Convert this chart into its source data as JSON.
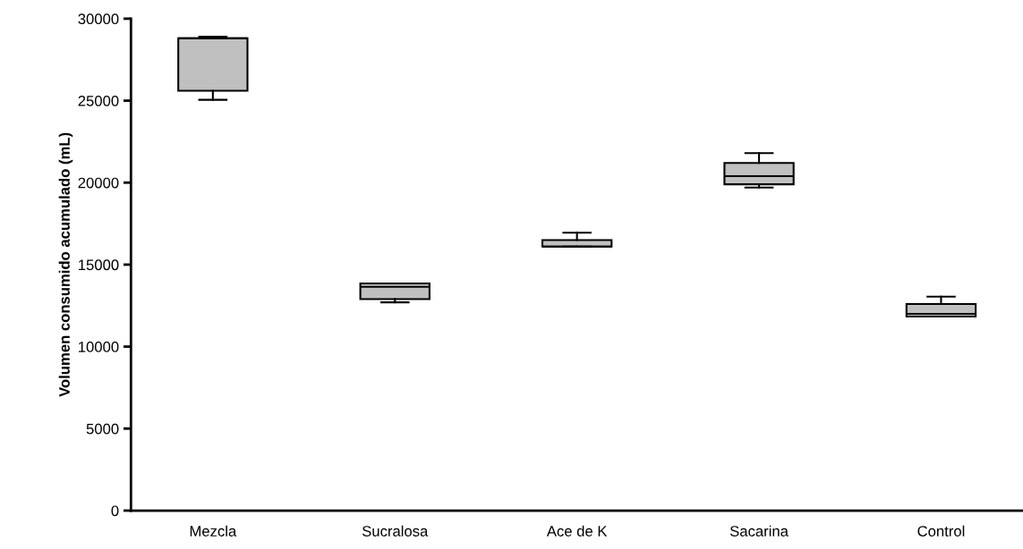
{
  "chart_data": {
    "type": "box",
    "ylabel": "Volumen consumido acumulado (mL)",
    "categories": [
      "Mezcla",
      "Sucralosa",
      "Ace de K",
      "Sacarina",
      "Control"
    ],
    "color": "#c0c0c0",
    "boxes": [
      {
        "low": 25050,
        "q1": 25600,
        "median": 28800,
        "q3": 28800,
        "high": 28900
      },
      {
        "low": 12700,
        "q1": 12900,
        "median": 13650,
        "q3": 13850,
        "high": 13850
      },
      {
        "low": 16100,
        "q1": 16100,
        "median": 16100,
        "q3": 16500,
        "high": 16950
      },
      {
        "low": 19700,
        "q1": 19900,
        "median": 20400,
        "q3": 21200,
        "high": 21800
      },
      {
        "low": 11830,
        "q1": 11830,
        "median": 12000,
        "q3": 12600,
        "high": 13050
      }
    ],
    "ylim": [
      0,
      30000
    ],
    "yticks": [
      0,
      5000,
      10000,
      15000,
      20000,
      25000,
      30000
    ],
    "grid": false
  }
}
